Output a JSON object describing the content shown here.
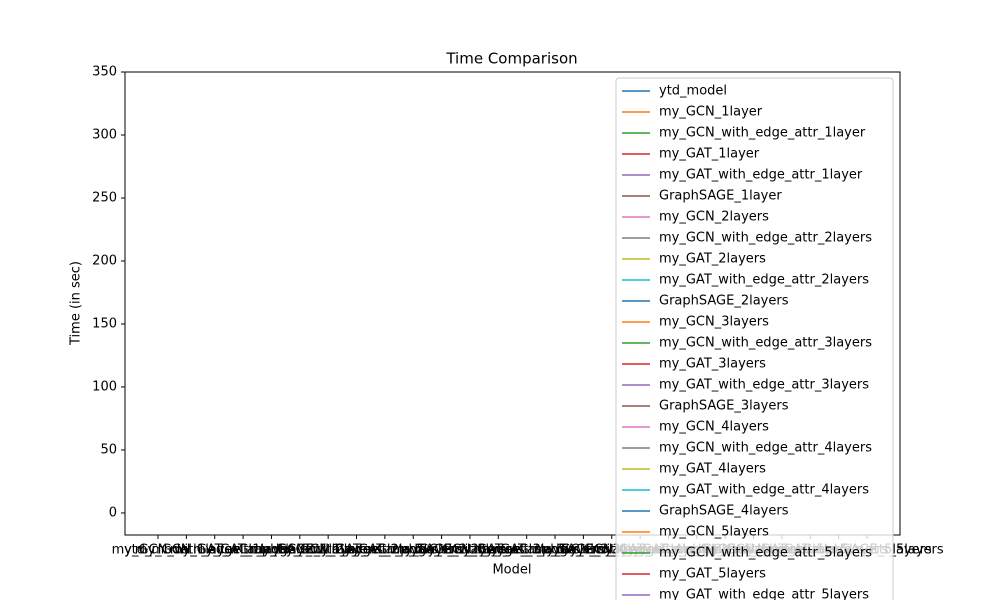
{
  "chart_data": {
    "type": "line",
    "title": "Time Comparison",
    "x_label": "Model",
    "y_label": "Time (in sec)",
    "categories": [
      "ytd_model",
      "my_GCN_1layer",
      "my_GCN_with_edge_attr_1layer",
      "my_GAT_1layer",
      "my_GAT_with_edge_attr_1layer",
      "GraphSAGE_1layer",
      "my_GCN_2layers",
      "my_GCN_with_edge_attr_2layers",
      "my_GAT_2layers",
      "my_GAT_with_edge_attr_2layers",
      "GraphSAGE_2layers",
      "my_GCN_3layers",
      "my_GCN_with_edge_attr_3layers",
      "my_GAT_3layers",
      "my_GAT_with_edge_attr_3layers",
      "GraphSAGE_3layers",
      "my_GCN_4layers",
      "my_GCN_with_edge_attr_4layers",
      "my_GAT_4layers",
      "my_GAT_with_edge_attr_4layers",
      "GraphSAGE_4layers",
      "my_GCN_5layers",
      "my_GCN_with_edge_attr_5layers",
      "my_GAT_5layers",
      "my_GAT_with_edge_attr_5layers",
      "GraphSAGE_5layers"
    ],
    "series": [
      {
        "name": "ytd_model",
        "color": "#1f77b4",
        "values": [
          null,
          null,
          null,
          null,
          null,
          null,
          null,
          null,
          null,
          null,
          null,
          null,
          null,
          null,
          null,
          null,
          null,
          null,
          null,
          null,
          null,
          null,
          null,
          null,
          null,
          null
        ]
      },
      {
        "name": "my_GCN_1layer",
        "color": "#ff7f0e",
        "values": [
          null,
          null,
          null,
          null,
          null,
          null,
          null,
          null,
          null,
          null,
          null,
          null,
          null,
          null,
          null,
          null,
          null,
          null,
          null,
          null,
          null,
          null,
          null,
          null,
          null,
          null
        ]
      },
      {
        "name": "my_GCN_with_edge_attr_1layer",
        "color": "#2ca02c",
        "values": [
          null,
          null,
          null,
          null,
          null,
          null,
          null,
          null,
          null,
          null,
          null,
          null,
          null,
          null,
          null,
          null,
          null,
          null,
          null,
          null,
          null,
          null,
          null,
          null,
          null,
          null
        ]
      },
      {
        "name": "my_GAT_1layer",
        "color": "#d62728",
        "values": [
          null,
          null,
          null,
          null,
          null,
          null,
          null,
          null,
          null,
          null,
          null,
          null,
          null,
          null,
          null,
          null,
          null,
          null,
          null,
          null,
          null,
          null,
          null,
          null,
          null,
          null
        ]
      },
      {
        "name": "my_GAT_with_edge_attr_1layer",
        "color": "#9467bd",
        "values": [
          null,
          null,
          null,
          null,
          null,
          null,
          null,
          null,
          null,
          null,
          null,
          null,
          null,
          null,
          null,
          null,
          null,
          null,
          null,
          null,
          null,
          null,
          null,
          null,
          null,
          null
        ]
      },
      {
        "name": "GraphSAGE_1layer",
        "color": "#8c564b",
        "values": [
          null,
          null,
          null,
          null,
          null,
          null,
          null,
          null,
          null,
          null,
          null,
          null,
          null,
          null,
          null,
          null,
          null,
          null,
          null,
          null,
          null,
          null,
          null,
          null,
          null,
          null
        ]
      },
      {
        "name": "my_GCN_2layers",
        "color": "#e377c2",
        "values": [
          null,
          null,
          null,
          null,
          null,
          null,
          null,
          null,
          null,
          null,
          null,
          null,
          null,
          null,
          null,
          null,
          null,
          null,
          null,
          null,
          null,
          null,
          null,
          null,
          null,
          null
        ]
      },
      {
        "name": "my_GCN_with_edge_attr_2layers",
        "color": "#7f7f7f",
        "values": [
          null,
          null,
          null,
          null,
          null,
          null,
          null,
          null,
          null,
          null,
          null,
          null,
          null,
          null,
          null,
          null,
          null,
          null,
          null,
          null,
          null,
          null,
          null,
          null,
          null,
          null
        ]
      },
      {
        "name": "my_GAT_2layers",
        "color": "#bcbd22",
        "values": [
          null,
          null,
          null,
          null,
          null,
          null,
          null,
          null,
          null,
          null,
          null,
          null,
          null,
          null,
          null,
          null,
          null,
          null,
          null,
          null,
          null,
          null,
          null,
          null,
          null,
          null
        ]
      },
      {
        "name": "my_GAT_with_edge_attr_2layers",
        "color": "#17becf",
        "values": [
          null,
          null,
          null,
          null,
          null,
          null,
          null,
          null,
          null,
          null,
          null,
          null,
          null,
          null,
          null,
          null,
          null,
          null,
          null,
          null,
          null,
          null,
          null,
          null,
          null,
          null
        ]
      },
      {
        "name": "GraphSAGE_2layers",
        "color": "#1f77b4",
        "values": [
          null,
          null,
          null,
          null,
          null,
          null,
          null,
          null,
          null,
          null,
          null,
          null,
          null,
          null,
          null,
          null,
          null,
          null,
          null,
          null,
          null,
          null,
          null,
          null,
          null,
          null
        ]
      },
      {
        "name": "my_GCN_3layers",
        "color": "#ff7f0e",
        "values": [
          null,
          null,
          null,
          null,
          null,
          null,
          null,
          null,
          null,
          null,
          null,
          null,
          null,
          null,
          null,
          null,
          null,
          null,
          null,
          null,
          null,
          null,
          null,
          null,
          null,
          null
        ]
      },
      {
        "name": "my_GCN_with_edge_attr_3layers",
        "color": "#2ca02c",
        "values": [
          null,
          null,
          null,
          null,
          null,
          null,
          null,
          null,
          null,
          null,
          null,
          null,
          null,
          null,
          null,
          null,
          null,
          null,
          null,
          null,
          null,
          null,
          null,
          null,
          null,
          null
        ]
      },
      {
        "name": "my_GAT_3layers",
        "color": "#d62728",
        "values": [
          null,
          null,
          null,
          null,
          null,
          null,
          null,
          null,
          null,
          null,
          null,
          null,
          null,
          null,
          null,
          null,
          null,
          null,
          null,
          null,
          null,
          null,
          null,
          null,
          null,
          null
        ]
      },
      {
        "name": "my_GAT_with_edge_attr_3layers",
        "color": "#9467bd",
        "values": [
          null,
          null,
          null,
          null,
          null,
          null,
          null,
          null,
          null,
          null,
          null,
          null,
          null,
          null,
          null,
          null,
          null,
          null,
          null,
          null,
          null,
          null,
          null,
          null,
          null,
          null
        ]
      },
      {
        "name": "GraphSAGE_3layers",
        "color": "#8c564b",
        "values": [
          null,
          null,
          null,
          null,
          null,
          null,
          null,
          null,
          null,
          null,
          null,
          null,
          null,
          null,
          null,
          null,
          null,
          null,
          null,
          null,
          null,
          null,
          null,
          null,
          null,
          null
        ]
      },
      {
        "name": "my_GCN_4layers",
        "color": "#e377c2",
        "values": [
          null,
          null,
          null,
          null,
          null,
          null,
          null,
          null,
          null,
          null,
          null,
          null,
          null,
          null,
          null,
          null,
          null,
          null,
          null,
          null,
          null,
          null,
          null,
          null,
          null,
          null
        ]
      },
      {
        "name": "my_GCN_with_edge_attr_4layers",
        "color": "#7f7f7f",
        "values": [
          null,
          null,
          null,
          null,
          null,
          null,
          null,
          null,
          null,
          null,
          null,
          null,
          null,
          null,
          null,
          null,
          null,
          null,
          null,
          null,
          null,
          null,
          null,
          null,
          null,
          null
        ]
      },
      {
        "name": "my_GAT_4layers",
        "color": "#bcbd22",
        "values": [
          null,
          null,
          null,
          null,
          null,
          null,
          null,
          null,
          null,
          null,
          null,
          null,
          null,
          null,
          null,
          null,
          null,
          null,
          null,
          null,
          null,
          null,
          null,
          null,
          null,
          null
        ]
      },
      {
        "name": "my_GAT_with_edge_attr_4layers",
        "color": "#17becf",
        "values": [
          null,
          null,
          null,
          null,
          null,
          null,
          null,
          null,
          null,
          null,
          null,
          null,
          null,
          null,
          null,
          null,
          null,
          null,
          null,
          null,
          null,
          null,
          null,
          null,
          null,
          null
        ]
      },
      {
        "name": "GraphSAGE_4layers",
        "color": "#1f77b4",
        "values": [
          null,
          null,
          null,
          null,
          null,
          null,
          null,
          null,
          null,
          null,
          null,
          null,
          null,
          null,
          null,
          null,
          null,
          null,
          null,
          null,
          null,
          null,
          null,
          null,
          null,
          null
        ]
      },
      {
        "name": "my_GCN_5layers",
        "color": "#ff7f0e",
        "values": [
          null,
          null,
          null,
          null,
          null,
          null,
          null,
          null,
          null,
          null,
          null,
          null,
          null,
          null,
          null,
          null,
          null,
          null,
          null,
          null,
          null,
          null,
          null,
          null,
          null,
          null
        ]
      },
      {
        "name": "my_GCN_with_edge_attr_5layers",
        "color": "#2ca02c",
        "values": [
          null,
          null,
          null,
          null,
          null,
          null,
          null,
          null,
          null,
          null,
          null,
          null,
          null,
          null,
          null,
          null,
          null,
          null,
          null,
          null,
          null,
          null,
          null,
          null,
          null,
          null
        ]
      },
      {
        "name": "my_GAT_5layers",
        "color": "#d62728",
        "values": [
          null,
          null,
          null,
          null,
          null,
          null,
          null,
          null,
          null,
          null,
          null,
          null,
          null,
          null,
          null,
          null,
          null,
          null,
          null,
          null,
          null,
          null,
          null,
          null,
          null,
          null
        ]
      },
      {
        "name": "my_GAT_with_edge_attr_5layers",
        "color": "#9467bd",
        "values": [
          null,
          null,
          null,
          null,
          null,
          null,
          null,
          null,
          null,
          null,
          null,
          null,
          null,
          null,
          null,
          null,
          null,
          null,
          null,
          null,
          null,
          null,
          null,
          null,
          null,
          null
        ]
      }
    ],
    "ylim": [
      -17.5,
      350
    ],
    "yticks": [
      0,
      50,
      100,
      150,
      200,
      250,
      300,
      350
    ],
    "grid": false,
    "legend": "upper right"
  }
}
